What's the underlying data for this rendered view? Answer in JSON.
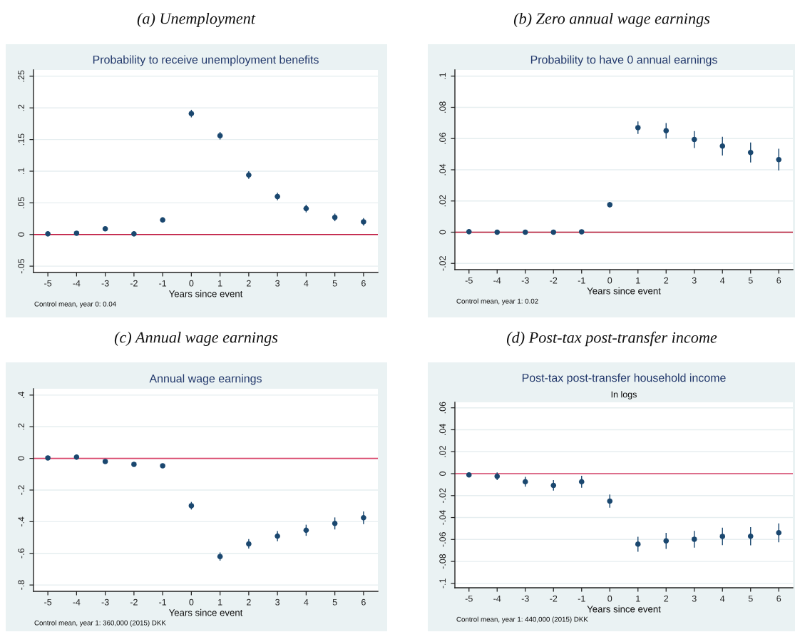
{
  "chart_data": [
    {
      "type": "scatter",
      "title": "Probability to receive unemployment benefits",
      "xlabel": "Years since event",
      "annotations": [
        "(a) Unemployment",
        "Control mean, year 0: 0.04"
      ],
      "x": [
        -5,
        -4,
        -3,
        -2,
        -1,
        0,
        1,
        2,
        3,
        4,
        5,
        6
      ],
      "values": [
        0.001,
        0.002,
        0.009,
        0.001,
        0.023,
        0.191,
        0.156,
        0.094,
        0.06,
        0.041,
        0.027,
        0.02
      ],
      "errors": [
        null,
        null,
        null,
        null,
        0.004,
        0.006,
        0.006,
        0.006,
        0.006,
        0.006,
        0.006,
        0.006
      ],
      "color": "#1a476f",
      "marker": "circle",
      "xlim": [
        -5.5,
        6.5
      ],
      "xticks": [
        -5,
        -4,
        -3,
        -2,
        -1,
        0,
        1,
        2,
        3,
        4,
        5,
        6
      ],
      "ylim": [
        -0.06,
        0.26
      ],
      "yticks": [
        {
          "value": -0.05,
          "label": "-.05"
        },
        0,
        {
          "value": 0.05,
          "label": ".05"
        },
        {
          "value": 0.1,
          "label": ".1"
        },
        {
          "value": 0.15,
          "label": ".15"
        },
        {
          "value": 0.2,
          "label": ".2"
        },
        {
          "value": 0.25,
          "label": ".25"
        }
      ],
      "grid": "y",
      "ref_lines": [
        {
          "axis": "y",
          "value": 0,
          "color": "#c0143c"
        }
      ]
    },
    {
      "type": "scatter",
      "title": "Probability to have 0 annual earnings",
      "xlabel": "Years since event",
      "annotations": [
        "(b) Zero annual wage earnings",
        "Control mean, year 1: 0.02"
      ],
      "x": [
        -5,
        -4,
        -3,
        -2,
        -1,
        0,
        1,
        2,
        3,
        4,
        5,
        6
      ],
      "values": [
        0.0003,
        0,
        0,
        0,
        0.0002,
        0.0176,
        0.067,
        0.065,
        0.0594,
        0.0552,
        0.0511,
        0.0465
      ],
      "errors": [
        null,
        null,
        null,
        null,
        null,
        0.0018,
        0.004,
        0.005,
        0.0054,
        0.006,
        0.0064,
        0.007
      ],
      "color": "#1a476f",
      "marker": "circle",
      "xlim": [
        -5.5,
        6.5
      ],
      "xticks": [
        -5,
        -4,
        -3,
        -2,
        -1,
        0,
        1,
        2,
        3,
        4,
        5,
        6
      ],
      "ylim": [
        -0.024,
        0.104
      ],
      "yticks": [
        {
          "value": -0.02,
          "label": "-.02"
        },
        0,
        {
          "value": 0.02,
          "label": ".02"
        },
        {
          "value": 0.04,
          "label": ".04"
        },
        {
          "value": 0.06,
          "label": ".06"
        },
        {
          "value": 0.08,
          "label": ".08"
        },
        {
          "value": 0.1,
          "label": ".1"
        }
      ],
      "grid": "y",
      "ref_lines": [
        {
          "axis": "y",
          "value": 0,
          "color": "#b5102f"
        }
      ]
    },
    {
      "type": "scatter",
      "title": "Annual wage earnings",
      "xlabel": "Years since event",
      "annotations": [
        "(c) Annual wage earnings",
        "Control mean, year 1: 360,000 (2015) DKK"
      ],
      "x": [
        -5,
        -4,
        -3,
        -2,
        -1,
        0,
        1,
        2,
        3,
        4,
        5,
        6
      ],
      "values": [
        0.003,
        0.008,
        -0.02,
        -0.038,
        -0.047,
        -0.299,
        -0.62,
        -0.54,
        -0.491,
        -0.454,
        -0.411,
        -0.375
      ],
      "errors": [
        null,
        null,
        null,
        null,
        null,
        0.024,
        0.026,
        0.03,
        0.032,
        0.035,
        0.038,
        0.04
      ],
      "color": "#1a476f",
      "marker": "circle",
      "xlim": [
        -5.5,
        6.5
      ],
      "xticks": [
        -5,
        -4,
        -3,
        -2,
        -1,
        0,
        1,
        2,
        3,
        4,
        5,
        6
      ],
      "ylim": [
        -0.84,
        0.44
      ],
      "yticks": [
        {
          "value": -0.8,
          "label": "-.8"
        },
        {
          "value": -0.6,
          "label": "-.6"
        },
        {
          "value": -0.4,
          "label": "-.4"
        },
        {
          "value": -0.2,
          "label": "-.2"
        },
        0,
        {
          "value": 0.2,
          "label": ".2"
        },
        {
          "value": 0.4,
          "label": ".4"
        }
      ],
      "grid": "y",
      "ref_lines": [
        {
          "axis": "y",
          "value": 0,
          "color": "#d9436a"
        }
      ]
    },
    {
      "type": "scatter",
      "title": "Post-tax post-transfer household income",
      "subtitle": "In logs",
      "xlabel": "Years since event",
      "annotations": [
        "(d) Post-tax post-transfer income",
        "Control mean, year 1: 440,000 (2015) DKK"
      ],
      "x": [
        -5,
        -4,
        -3,
        -2,
        -1,
        0,
        1,
        2,
        3,
        4,
        5,
        6
      ],
      "values": [
        -0.0011,
        -0.0024,
        -0.0074,
        -0.0107,
        -0.0074,
        -0.025,
        -0.0643,
        -0.0613,
        -0.0598,
        -0.0572,
        -0.057,
        -0.0539
      ],
      "errors": [
        null,
        0.0035,
        0.0045,
        0.0048,
        0.0054,
        0.006,
        0.0068,
        0.0073,
        0.0076,
        0.008,
        0.0083,
        0.0086
      ],
      "color": "#1a476f",
      "marker": "circle",
      "xlim": [
        -5.5,
        6.5
      ],
      "xticks": [
        -5,
        -4,
        -3,
        -2,
        -1,
        0,
        1,
        2,
        3,
        4,
        5,
        6
      ],
      "ylim": [
        -0.104,
        0.065
      ],
      "yticks": [
        {
          "value": -0.1,
          "label": "-.1"
        },
        {
          "value": -0.08,
          "label": "-.08"
        },
        {
          "value": -0.06,
          "label": "-.06"
        },
        {
          "value": -0.04,
          "label": "-.04"
        },
        {
          "value": -0.02,
          "label": "-.02"
        },
        0,
        {
          "value": 0.02,
          "label": ".02"
        },
        {
          "value": 0.04,
          "label": ".04"
        },
        {
          "value": 0.06,
          "label": ".06"
        }
      ],
      "grid": "y",
      "ref_lines": [
        {
          "axis": "y",
          "value": 0,
          "color": "#d9436a"
        }
      ]
    }
  ]
}
